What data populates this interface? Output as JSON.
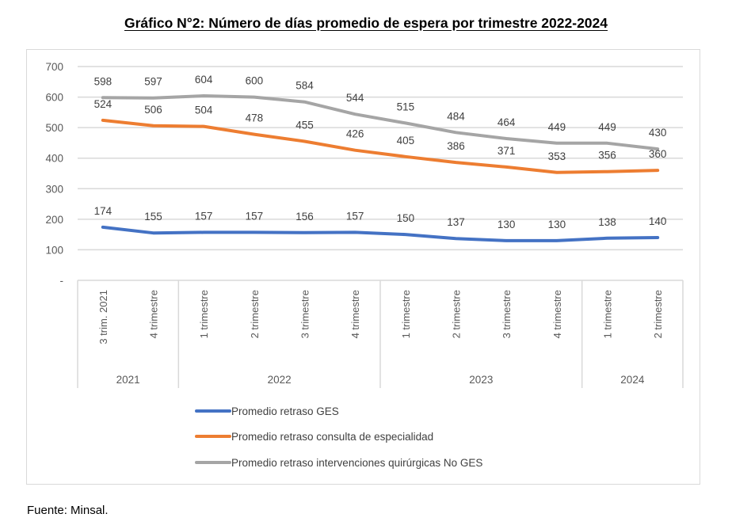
{
  "title": "Gráfico N°2: Número de días promedio de espera por trimestre 2022-2024",
  "source": "Fuente: Minsal.",
  "chart_data": {
    "type": "line",
    "title": "Gráfico N°2: Número de días promedio de espera por trimestre 2022-2024",
    "xlabel": "",
    "ylabel": "",
    "ylim": [
      0,
      700
    ],
    "yticks": [
      0,
      100,
      200,
      300,
      400,
      500,
      600,
      700
    ],
    "ytick_labels": [
      "-",
      "100",
      "200",
      "300",
      "400",
      "500",
      "600",
      "700"
    ],
    "grid": true,
    "legend_position": "bottom",
    "categories": [
      "3 trim. 2021",
      "4 trimestre",
      "1 trimestre",
      "2 trimestre",
      "3 trimestre",
      "4 trimestre",
      "1 trimestre",
      "2 trimestre",
      "3 trimestre",
      "4 trimestre",
      "1 trimestre",
      "2 trimestre"
    ],
    "year_groups": [
      {
        "label": "2021",
        "count": 2
      },
      {
        "label": "2022",
        "count": 4
      },
      {
        "label": "2023",
        "count": 4
      },
      {
        "label": "2024",
        "count": 2
      }
    ],
    "series": [
      {
        "name": "Promedio retraso GES",
        "color": "#4472c4",
        "values": [
          174,
          155,
          157,
          157,
          156,
          157,
          150,
          137,
          130,
          130,
          138,
          140
        ]
      },
      {
        "name": "Promedio retraso consulta de especialidad",
        "color": "#ed7d31",
        "values": [
          524,
          506,
          504,
          478,
          455,
          426,
          405,
          386,
          371,
          353,
          356,
          360
        ]
      },
      {
        "name": "Promedio retraso intervenciones quirúrgicas No GES",
        "color": "#a5a5a5",
        "values": [
          598,
          597,
          604,
          600,
          584,
          544,
          515,
          484,
          464,
          449,
          449,
          430
        ]
      }
    ]
  }
}
